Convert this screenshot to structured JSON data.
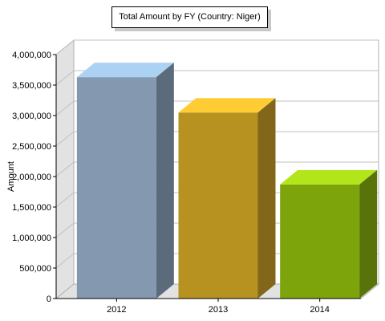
{
  "chart_data": {
    "type": "bar",
    "title": "Total Amount by FY (Country: Niger)",
    "xlabel": "",
    "ylabel": "Amount",
    "categories": [
      "2012",
      "2013",
      "2014"
    ],
    "values": [
      3630000,
      3050000,
      1870000
    ],
    "ylim": [
      0,
      4000000
    ],
    "yticks": [
      "0",
      "500,000",
      "1,000,000",
      "1,500,000",
      "2,000,000",
      "2,500,000",
      "3,000,000",
      "3,500,000",
      "4,000,000"
    ],
    "grid": true,
    "legend": "none",
    "style": "3d",
    "colors": {
      "front": [
        "#8499b0",
        "#b79221",
        "#7ea40c"
      ],
      "top": [
        "#acd2f3",
        "#ffcc33",
        "#b3e61a"
      ],
      "side": [
        "#5b6b7c",
        "#82671a",
        "#587309"
      ]
    }
  }
}
